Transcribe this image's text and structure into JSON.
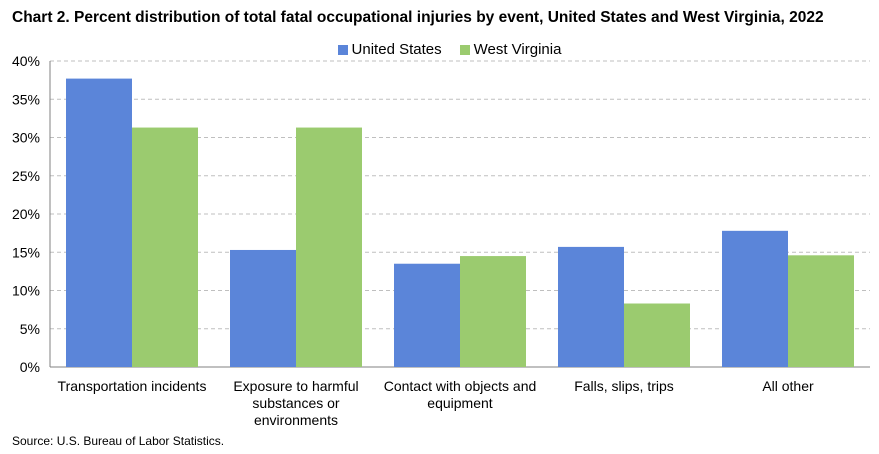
{
  "chart_data": {
    "type": "bar",
    "title": "Chart 2. Percent distribution of total fatal occupational injuries by event, United States and West Virginia, 2022",
    "categories": [
      "Transportation incidents",
      "Exposure to harmful substances or environments",
      "Contact with objects and equipment",
      "Falls, slips, trips",
      "All other"
    ],
    "category_lines": [
      [
        "Transportation incidents"
      ],
      [
        "Exposure to harmful",
        "substances or",
        "environments"
      ],
      [
        "Contact with objects and",
        "equipment"
      ],
      [
        "Falls, slips, trips"
      ],
      [
        "All other"
      ]
    ],
    "series": [
      {
        "name": "United States",
        "color": "#5b85d9",
        "values": [
          37.7,
          15.3,
          13.5,
          15.7,
          17.8
        ]
      },
      {
        "name": "West Virginia",
        "color": "#9bcb6f",
        "values": [
          31.3,
          31.3,
          14.5,
          8.3,
          14.6
        ]
      }
    ],
    "ylim": [
      0,
      40
    ],
    "yticks": [
      "0%",
      "5%",
      "10%",
      "15%",
      "20%",
      "25%",
      "30%",
      "35%",
      "40%"
    ],
    "grid": true,
    "legend": "top-center"
  },
  "source": "Source: U.S. Bureau of Labor Statistics."
}
